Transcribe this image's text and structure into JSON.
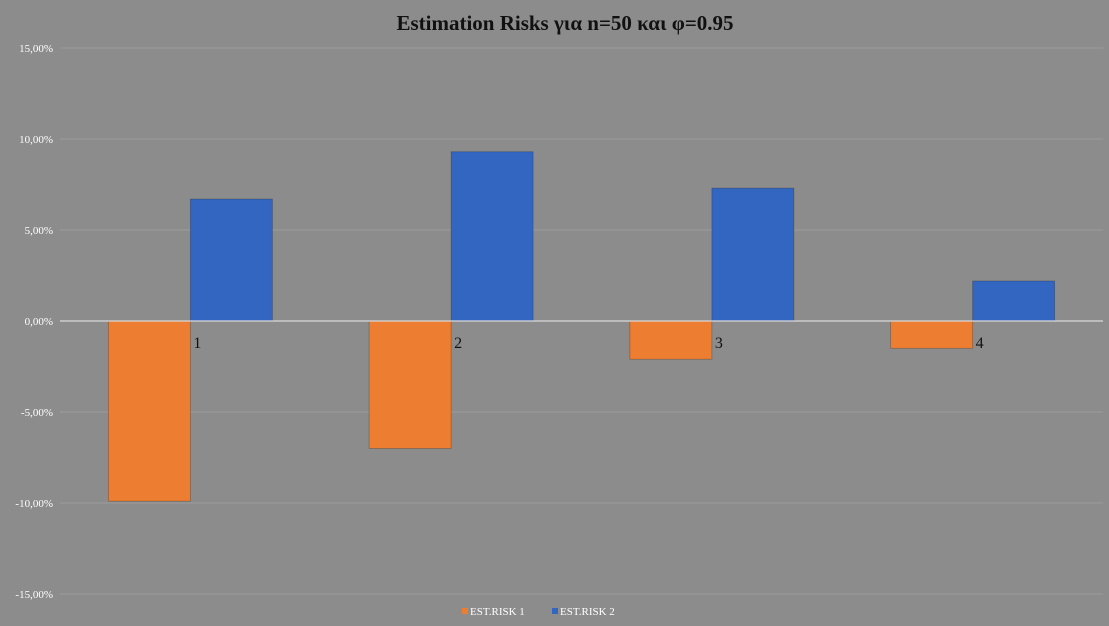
{
  "chart_data": {
    "type": "bar",
    "title": "Estimation Risks για n=50 και φ=0.95",
    "categories": [
      "1",
      "2",
      "3",
      "4"
    ],
    "series": [
      {
        "name": "EST.RISK 1",
        "values": [
          -9.9,
          -7.0,
          -2.1,
          -1.5
        ],
        "color": "#ed7d31"
      },
      {
        "name": "EST.RISK 2",
        "values": [
          6.7,
          9.3,
          7.3,
          2.2
        ],
        "color": "#3366c1"
      }
    ],
    "ylim": [
      -15,
      15
    ],
    "yticks": [
      {
        "value": 15,
        "label": "15,00%"
      },
      {
        "value": 10,
        "label": "10,00%"
      },
      {
        "value": 5,
        "label": "5,00%"
      },
      {
        "value": 0,
        "label": "0,00%"
      },
      {
        "value": -5,
        "label": "-5,00%"
      },
      {
        "value": -10,
        "label": "-10,00%"
      },
      {
        "value": -15,
        "label": "-15,00%"
      }
    ],
    "grid": true,
    "legend": "bottom-center",
    "background": "#8c8c8c"
  }
}
